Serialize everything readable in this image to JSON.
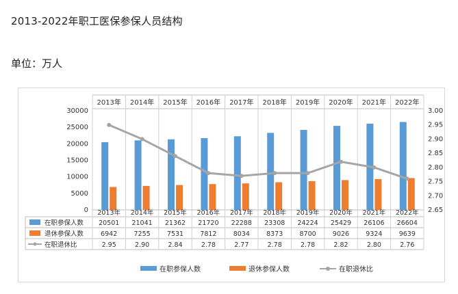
{
  "header": {
    "title": "2013-2022年职工医保参保人员结构",
    "unit": "单位：万人"
  },
  "chart_data": {
    "type": "bar",
    "categories": [
      "2013年",
      "2014年",
      "2015年",
      "2016年",
      "2017年",
      "2018年",
      "2019年",
      "2020年",
      "2021年",
      "2022年"
    ],
    "series": [
      {
        "name": "在职参保人数",
        "kind": "bar",
        "axis": "left",
        "color": "#5b9bd5",
        "values": [
          20501,
          21041,
          21362,
          21720,
          22288,
          23308,
          24224,
          25429,
          26106,
          26604
        ]
      },
      {
        "name": "退休参保人数",
        "kind": "bar",
        "axis": "left",
        "color": "#ed7d31",
        "values": [
          6942,
          7255,
          7531,
          7812,
          8034,
          8373,
          8700,
          9026,
          9324,
          9639
        ]
      },
      {
        "name": "在职退休比",
        "kind": "line",
        "axis": "right",
        "color": "#a5a5a5",
        "values": [
          2.95,
          2.9,
          2.84,
          2.78,
          2.77,
          2.78,
          2.78,
          2.82,
          2.8,
          2.76
        ]
      }
    ],
    "table_values": [
      [
        "20501",
        "21041",
        "21362",
        "21720",
        "22288",
        "23308",
        "24224",
        "25429",
        "26106",
        "26604"
      ],
      [
        "6942",
        "7255",
        "7531",
        "7812",
        "8034",
        "8373",
        "8700",
        "9026",
        "9324",
        "9639"
      ],
      [
        "2.95",
        "2.90",
        "2.84",
        "2.78",
        "2.77",
        "2.78",
        "2.78",
        "2.82",
        "2.80",
        "2.76"
      ]
    ],
    "left_axis": {
      "ylim": [
        0,
        30000
      ],
      "ticks": [
        "0",
        "5000",
        "10000",
        "15000",
        "20000",
        "25000",
        "30000"
      ]
    },
    "right_axis": {
      "ylim": [
        2.65,
        3.0
      ],
      "ticks": [
        "2.65",
        "2.70",
        "2.75",
        "2.80",
        "2.85",
        "2.90",
        "2.95",
        "3.00"
      ]
    },
    "legend": {
      "placement": "bottom",
      "items": [
        "在职参保人数",
        "退休参保人数",
        "在职退休比"
      ]
    },
    "grid": false
  }
}
